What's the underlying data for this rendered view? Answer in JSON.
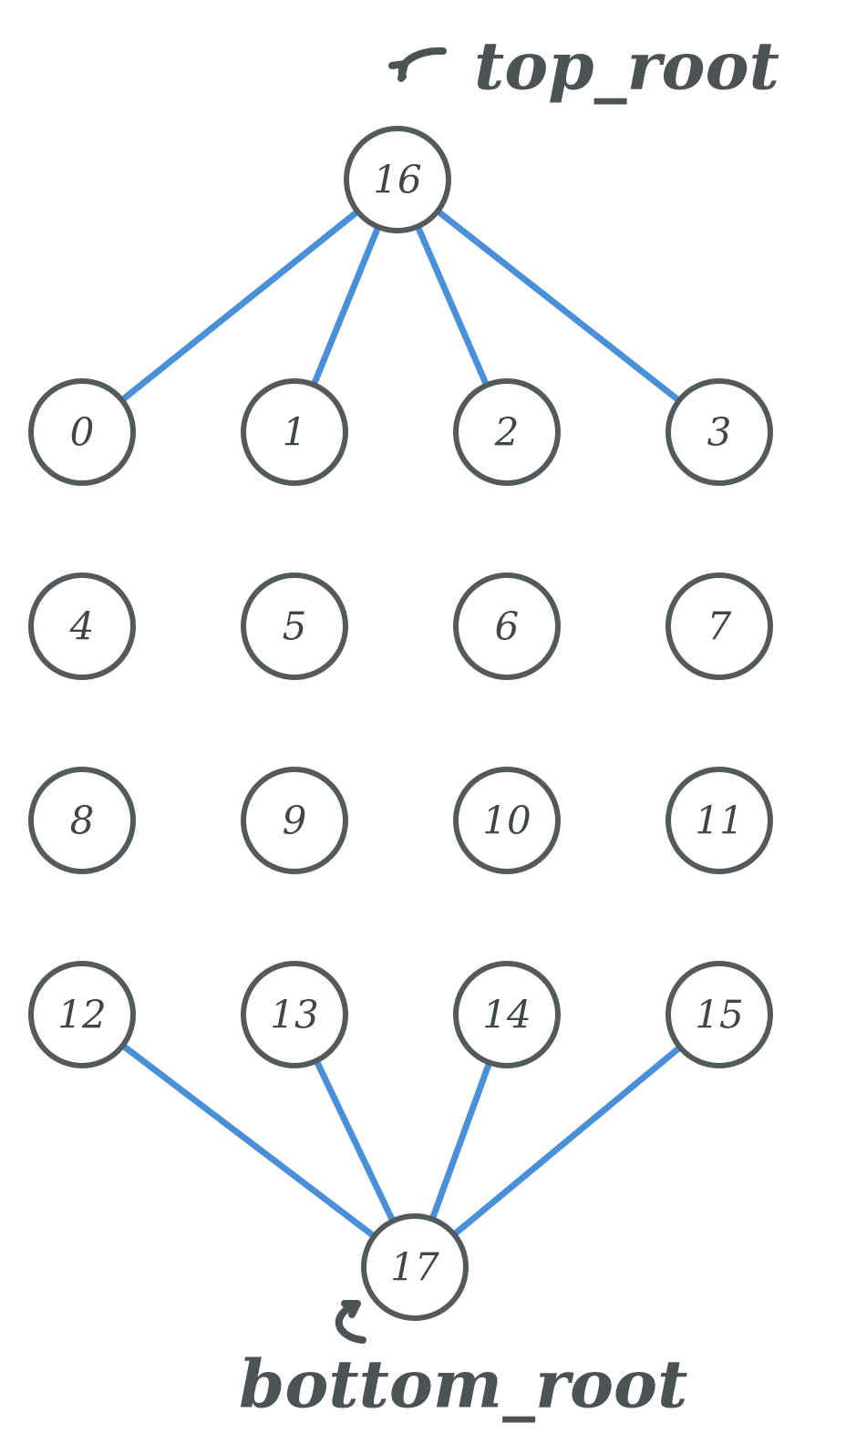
{
  "nodes": [
    {
      "id": "0",
      "label": "0"
    },
    {
      "id": "1",
      "label": "1"
    },
    {
      "id": "2",
      "label": "2"
    },
    {
      "id": "3",
      "label": "3"
    },
    {
      "id": "4",
      "label": "4"
    },
    {
      "id": "5",
      "label": "5"
    },
    {
      "id": "6",
      "label": "6"
    },
    {
      "id": "7",
      "label": "7"
    },
    {
      "id": "8",
      "label": "8"
    },
    {
      "id": "9",
      "label": "9"
    },
    {
      "id": "10",
      "label": "10"
    },
    {
      "id": "11",
      "label": "11"
    },
    {
      "id": "12",
      "label": "12"
    },
    {
      "id": "13",
      "label": "13"
    },
    {
      "id": "14",
      "label": "14"
    },
    {
      "id": "15",
      "label": "15"
    },
    {
      "id": "16",
      "label": "16"
    },
    {
      "id": "17",
      "label": "17"
    }
  ],
  "edges": [
    {
      "from": "16",
      "to": "0"
    },
    {
      "from": "16",
      "to": "1"
    },
    {
      "from": "16",
      "to": "2"
    },
    {
      "from": "16",
      "to": "3"
    },
    {
      "from": "12",
      "to": "17"
    },
    {
      "from": "13",
      "to": "17"
    },
    {
      "from": "14",
      "to": "17"
    },
    {
      "from": "15",
      "to": "17"
    }
  ],
  "annotations": {
    "top_root": "top_root",
    "bottom_root": "bottom_root"
  },
  "colors": {
    "edge": "#4A90D9",
    "node_stroke": "#525a5e",
    "text": "#3f4649"
  }
}
